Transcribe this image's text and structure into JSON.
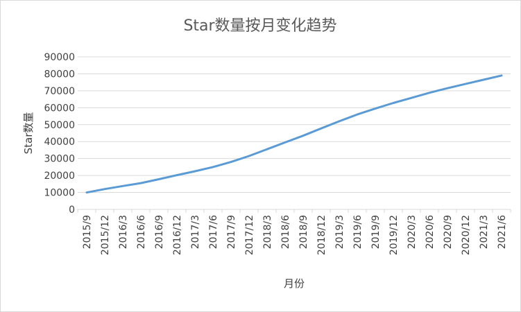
{
  "chart_data": {
    "type": "line",
    "title": "Star数量按月变化趋势",
    "xlabel": "月份",
    "ylabel": "Star数量",
    "ylim": [
      0,
      90000
    ],
    "yticks": [
      0,
      10000,
      20000,
      30000,
      40000,
      50000,
      60000,
      70000,
      80000,
      90000
    ],
    "grid": true,
    "legend": "none",
    "line_color": "#5b9bd5",
    "x": [
      "2015/9",
      "2015/12",
      "2016/3",
      "2016/6",
      "2016/9",
      "2016/12",
      "2017/3",
      "2017/6",
      "2017/9",
      "2017/12",
      "2018/3",
      "2018/6",
      "2018/9",
      "2018/12",
      "2019/3",
      "2019/6",
      "2019/9",
      "2019/12",
      "2020/3",
      "2020/6",
      "2020/9",
      "2020/12",
      "2021/3",
      "2021/6"
    ],
    "values": [
      10000,
      12000,
      13800,
      15500,
      17800,
      20200,
      22500,
      25000,
      28000,
      31500,
      35500,
      39500,
      43500,
      47800,
      52000,
      56000,
      59500,
      62800,
      65800,
      68800,
      71500,
      74000,
      76500,
      79000
    ]
  }
}
